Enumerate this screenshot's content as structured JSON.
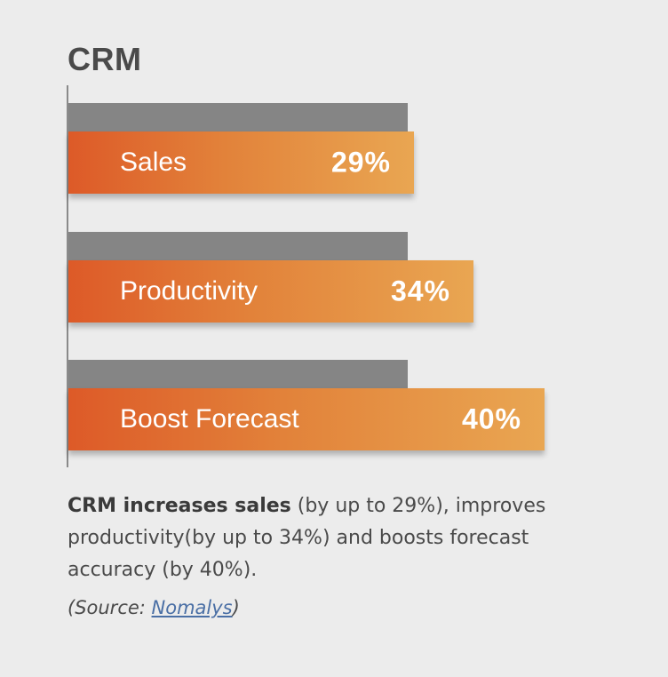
{
  "chart_data": {
    "type": "bar",
    "title": "CRM",
    "categories": [
      "Sales",
      "Productivity",
      "Boost Forecast"
    ],
    "values": [
      29,
      34,
      40
    ],
    "value_labels": [
      "29%",
      "34%",
      "40%"
    ],
    "orientation": "horizontal",
    "xlim": [
      0,
      40
    ]
  },
  "caption": {
    "bold": "CRM increases sales",
    "rest": " (by up to 29%), improves productivity(by up to 34%) and boosts forecast accuracy (by 40%)."
  },
  "source": {
    "prefix": "(Source: ",
    "link": "Nomalys",
    "suffix": ")"
  },
  "colors": {
    "background": "#ececec",
    "bar_grey": "#858585",
    "bar_orange_start": "#dd5a28",
    "bar_orange_end": "#e9a652",
    "link": "#4a6fa5"
  }
}
